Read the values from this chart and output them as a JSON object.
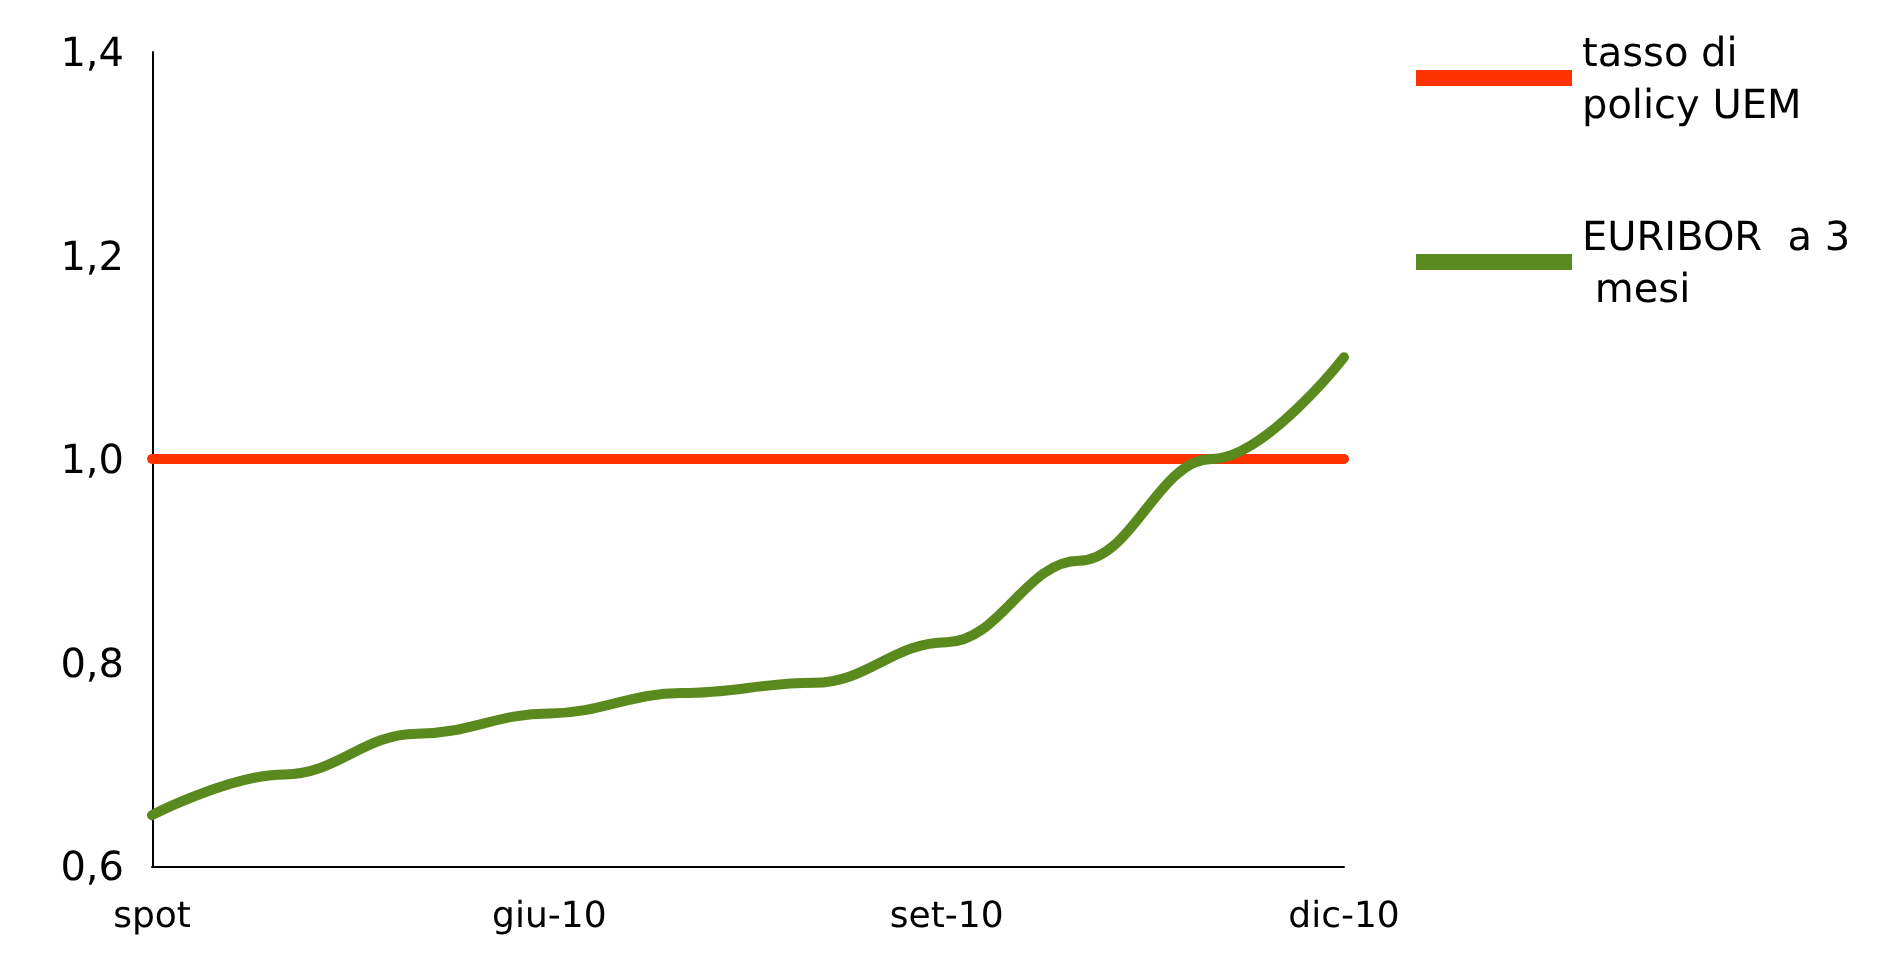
{
  "chart_data": {
    "type": "line",
    "categories": [
      "spot",
      null,
      null,
      "giu-10",
      null,
      null,
      "set-10",
      null,
      null,
      "dic-10"
    ],
    "series": [
      {
        "name": "tasso di policy UEM",
        "color": "#ff3300",
        "values": [
          1.0,
          1.0,
          1.0,
          1.0,
          1.0,
          1.0,
          1.0,
          1.0,
          1.0,
          1.0
        ]
      },
      {
        "name": "EURIBOR  a 3 mesi",
        "color": "#5a8a1e",
        "values": [
          0.65,
          0.69,
          0.73,
          0.75,
          0.77,
          0.78,
          0.82,
          0.9,
          1.0,
          1.1
        ]
      }
    ],
    "ylim": [
      0.6,
      1.4
    ],
    "yticks": [
      {
        "value": 0.6,
        "label": "0,6"
      },
      {
        "value": 0.8,
        "label": "0,8"
      },
      {
        "value": 1.0,
        "label": "1,0"
      },
      {
        "value": 1.2,
        "label": "1,2"
      },
      {
        "value": 1.4,
        "label": "1,4"
      }
    ],
    "grid": false,
    "legend": "top right",
    "marker": "none",
    "line_style": "solid"
  }
}
